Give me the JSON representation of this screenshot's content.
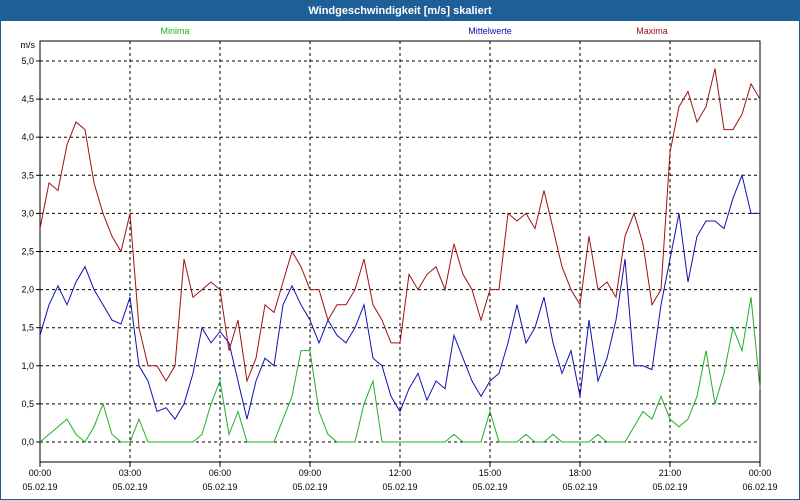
{
  "window": {
    "title": "Windgeschwindigkeit [m/s] skaliert"
  },
  "chart_data": {
    "type": "line",
    "title": "Windgeschwindigkeit [m/s] skaliert",
    "ylabel": "m/s",
    "xlabel": "",
    "ylim": [
      0,
      5
    ],
    "yticks": [
      "0,0",
      "0,5",
      "1,0",
      "1,5",
      "2,0",
      "2,5",
      "3,0",
      "3,5",
      "4,0",
      "4,5",
      "5,0"
    ],
    "xticks": [
      {
        "time": "00:00",
        "date": "05.02.19"
      },
      {
        "time": "03:00",
        "date": "05.02.19"
      },
      {
        "time": "06:00",
        "date": "05.02.19"
      },
      {
        "time": "09:00",
        "date": "05.02.19"
      },
      {
        "time": "12:00",
        "date": "05.02.19"
      },
      {
        "time": "15:00",
        "date": "05.02.19"
      },
      {
        "time": "18:00",
        "date": "05.02.19"
      },
      {
        "time": "21:00",
        "date": "05.02.19"
      },
      {
        "time": "00:00",
        "date": "06.02.19"
      }
    ],
    "x_range_hours": [
      0,
      24
    ],
    "grid": true,
    "series": [
      {
        "name": "Minima",
        "color": "#20b020",
        "x": [
          0,
          0.3,
          0.6,
          0.9,
          1.2,
          1.5,
          1.8,
          2.1,
          2.4,
          2.7,
          3,
          3.3,
          3.6,
          3.9,
          4.2,
          4.5,
          4.8,
          5.1,
          5.4,
          5.7,
          6,
          6.3,
          6.6,
          6.9,
          7.2,
          7.5,
          7.8,
          8.1,
          8.4,
          8.7,
          9,
          9.3,
          9.6,
          9.9,
          10.2,
          10.5,
          10.8,
          11.1,
          11.4,
          11.7,
          12,
          12.3,
          12.6,
          12.9,
          13.2,
          13.5,
          13.8,
          14.1,
          14.4,
          14.7,
          15,
          15.3,
          15.6,
          15.9,
          16.2,
          16.5,
          16.8,
          17.1,
          17.4,
          17.7,
          18,
          18.3,
          18.6,
          18.9,
          19.2,
          19.5,
          19.8,
          20.1,
          20.4,
          20.7,
          21,
          21.3,
          21.6,
          21.9,
          22.2,
          22.5,
          22.8,
          23.1,
          23.4,
          23.7,
          24
        ],
        "values": [
          0,
          0.1,
          0.2,
          0.3,
          0.1,
          0,
          0.2,
          0.5,
          0.1,
          0,
          0,
          0.3,
          0,
          0,
          0,
          0,
          0,
          0,
          0.1,
          0.5,
          0.8,
          0.1,
          0.4,
          0,
          0,
          0,
          0,
          0.3,
          0.6,
          1.2,
          1.2,
          0.4,
          0.1,
          0,
          0,
          0,
          0.5,
          0.8,
          0,
          0,
          0,
          0,
          0,
          0,
          0,
          0,
          0.1,
          0,
          0,
          0,
          0.4,
          0,
          0,
          0,
          0.1,
          0,
          0,
          0.1,
          0,
          0,
          0,
          0,
          0.1,
          0,
          0,
          0,
          0.2,
          0.4,
          0.3,
          0.6,
          0.3,
          0.2,
          0.3,
          0.6,
          1.2,
          0.5,
          0.9,
          1.5,
          1.2,
          1.9,
          0.7
        ],
        "minmax_note": ""
      },
      {
        "name": "Mittelwerte",
        "color": "#1010b0",
        "x": [
          0,
          0.3,
          0.6,
          0.9,
          1.2,
          1.5,
          1.8,
          2.1,
          2.4,
          2.7,
          3,
          3.3,
          3.6,
          3.9,
          4.2,
          4.5,
          4.8,
          5.1,
          5.4,
          5.7,
          6,
          6.3,
          6.6,
          6.9,
          7.2,
          7.5,
          7.8,
          8.1,
          8.4,
          8.7,
          9,
          9.3,
          9.6,
          9.9,
          10.2,
          10.5,
          10.8,
          11.1,
          11.4,
          11.7,
          12,
          12.3,
          12.6,
          12.9,
          13.2,
          13.5,
          13.8,
          14.1,
          14.4,
          14.7,
          15,
          15.3,
          15.6,
          15.9,
          16.2,
          16.5,
          16.8,
          17.1,
          17.4,
          17.7,
          18,
          18.3,
          18.6,
          18.9,
          19.2,
          19.5,
          19.8,
          20.1,
          20.4,
          20.7,
          21,
          21.3,
          21.6,
          21.9,
          22.2,
          22.5,
          22.8,
          23.1,
          23.4,
          23.7,
          24
        ],
        "values": [
          1.4,
          1.8,
          2.05,
          1.8,
          2.1,
          2.3,
          2.0,
          1.8,
          1.6,
          1.55,
          1.9,
          1.0,
          0.8,
          0.4,
          0.45,
          0.3,
          0.5,
          0.9,
          1.5,
          1.3,
          1.45,
          1.3,
          0.8,
          0.3,
          0.8,
          1.1,
          1.0,
          1.8,
          2.05,
          1.8,
          1.6,
          1.3,
          1.6,
          1.4,
          1.3,
          1.5,
          1.8,
          1.1,
          1.0,
          0.6,
          0.4,
          0.7,
          0.9,
          0.55,
          0.8,
          0.7,
          1.4,
          1.1,
          0.8,
          0.6,
          0.8,
          0.9,
          1.3,
          1.8,
          1.3,
          1.5,
          1.9,
          1.3,
          0.9,
          1.2,
          0.6,
          1.6,
          0.8,
          1.1,
          1.6,
          2.4,
          1.0,
          1.0,
          0.95,
          1.8,
          2.4,
          3.0,
          2.1,
          2.7,
          2.9,
          2.9,
          2.8,
          3.2,
          3.5,
          3.0,
          3.0
        ],
        "minmax_note": ""
      },
      {
        "name": "Maxima",
        "color": "#a01010",
        "x": [
          0,
          0.3,
          0.6,
          0.9,
          1.2,
          1.5,
          1.8,
          2.1,
          2.4,
          2.7,
          3,
          3.3,
          3.6,
          3.9,
          4.2,
          4.5,
          4.8,
          5.1,
          5.4,
          5.7,
          6,
          6.3,
          6.6,
          6.9,
          7.2,
          7.5,
          7.8,
          8.1,
          8.4,
          8.7,
          9,
          9.3,
          9.6,
          9.9,
          10.2,
          10.5,
          10.8,
          11.1,
          11.4,
          11.7,
          12,
          12.3,
          12.6,
          12.9,
          13.2,
          13.5,
          13.8,
          14.1,
          14.4,
          14.7,
          15,
          15.3,
          15.6,
          15.9,
          16.2,
          16.5,
          16.8,
          17.1,
          17.4,
          17.7,
          18,
          18.3,
          18.6,
          18.9,
          19.2,
          19.5,
          19.8,
          20.1,
          20.4,
          20.7,
          21,
          21.3,
          21.6,
          21.9,
          22.2,
          22.5,
          22.8,
          23.1,
          23.4,
          23.7,
          24
        ],
        "values": [
          2.8,
          3.4,
          3.3,
          3.9,
          4.2,
          4.1,
          3.4,
          3.0,
          2.7,
          2.5,
          3.0,
          1.5,
          1.0,
          1.0,
          0.8,
          1.0,
          2.4,
          1.9,
          2.0,
          2.1,
          2.0,
          1.2,
          1.6,
          0.8,
          1.1,
          1.8,
          1.7,
          2.1,
          2.5,
          2.3,
          2.0,
          2.0,
          1.6,
          1.8,
          1.8,
          2.0,
          2.4,
          1.8,
          1.6,
          1.3,
          1.3,
          2.2,
          2.0,
          2.2,
          2.3,
          2.0,
          2.6,
          2.2,
          2.0,
          1.6,
          2.0,
          2.0,
          3.0,
          2.9,
          3.0,
          2.8,
          3.3,
          2.8,
          2.3,
          2.0,
          1.8,
          2.7,
          2.0,
          2.1,
          1.9,
          2.7,
          3.0,
          2.6,
          1.8,
          2.0,
          3.8,
          4.4,
          4.6,
          4.2,
          4.4,
          4.9,
          4.1,
          4.1,
          4.3,
          4.7,
          4.5
        ],
        "minmax_note": ""
      }
    ]
  }
}
